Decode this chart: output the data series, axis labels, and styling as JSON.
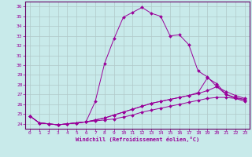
{
  "xlabel": "Windchill (Refroidissement éolien,°C)",
  "background_color": "#c8eaea",
  "grid_color": "#b0c8c8",
  "line_color": "#990099",
  "spine_color": "#660066",
  "x_ticks": [
    0,
    1,
    2,
    3,
    4,
    5,
    6,
    7,
    8,
    9,
    10,
    11,
    12,
    13,
    14,
    15,
    16,
    17,
    18,
    19,
    20,
    21,
    22,
    23
  ],
  "ylim": [
    23.5,
    36.5
  ],
  "xlim": [
    -0.5,
    23.5
  ],
  "yticks": [
    24,
    25,
    26,
    27,
    28,
    29,
    30,
    31,
    32,
    33,
    34,
    35,
    36
  ],
  "series": [
    [
      24.8,
      24.1,
      24.0,
      23.9,
      24.0,
      24.1,
      24.2,
      26.3,
      30.2,
      32.7,
      34.9,
      35.4,
      35.9,
      35.3,
      35.0,
      33.0,
      33.1,
      32.1,
      29.4,
      28.8,
      27.8,
      27.0,
      26.6,
      26.3
    ],
    [
      24.8,
      24.1,
      24.0,
      23.9,
      24.0,
      24.1,
      24.2,
      24.3,
      24.4,
      24.5,
      24.7,
      24.9,
      25.2,
      25.4,
      25.6,
      25.8,
      26.0,
      26.2,
      26.4,
      26.6,
      26.7,
      26.7,
      26.6,
      26.5
    ],
    [
      24.8,
      24.1,
      24.0,
      23.9,
      24.0,
      24.1,
      24.2,
      24.4,
      24.6,
      24.9,
      25.2,
      25.5,
      25.8,
      26.1,
      26.3,
      26.5,
      26.7,
      26.9,
      27.1,
      27.4,
      27.8,
      27.3,
      26.9,
      26.6
    ],
    [
      24.8,
      24.1,
      24.0,
      23.9,
      24.0,
      24.1,
      24.2,
      24.4,
      24.6,
      24.9,
      25.2,
      25.5,
      25.8,
      26.1,
      26.3,
      26.5,
      26.7,
      26.9,
      27.2,
      28.7,
      28.1,
      27.0,
      26.7,
      26.5
    ]
  ]
}
